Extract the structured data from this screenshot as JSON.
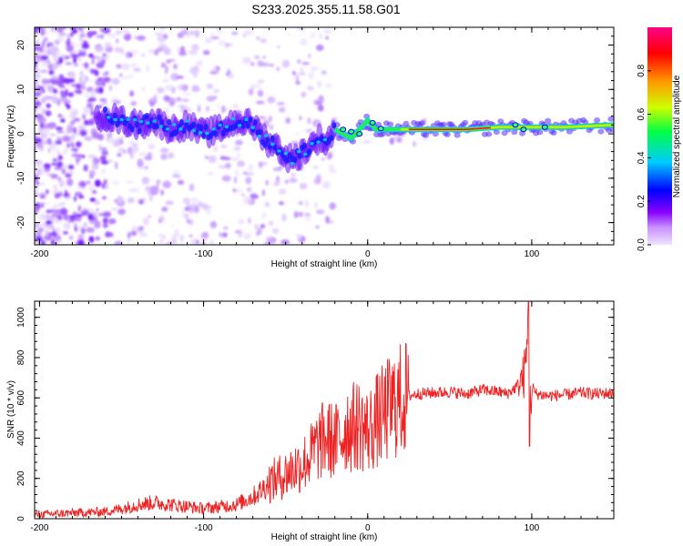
{
  "title": "S233.2025.355.11.58.G01",
  "chart_data": [
    {
      "type": "heatmap",
      "xlabel": "Height of straight line (km)",
      "ylabel": "Frequency (Hz)",
      "xlim": [
        -203,
        150
      ],
      "ylim": [
        -25,
        24
      ],
      "xticks": [
        -200,
        -100,
        0,
        100
      ],
      "xtick_labels": [
        "-200",
        "-100",
        "0",
        "100"
      ],
      "yticks": [
        20,
        10,
        0,
        -10,
        -20
      ],
      "ytick_labels": [
        "20",
        "10",
        "0",
        "-10",
        "-20"
      ],
      "ridge": {
        "x": [
          -160,
          -150,
          -140,
          -130,
          -120,
          -110,
          -100,
          -90,
          -80,
          -70,
          -60,
          -55,
          -50,
          -45,
          -40,
          -35,
          -30,
          -25,
          -20,
          -15,
          -10,
          -5,
          0,
          5,
          10,
          20,
          40,
          60,
          80,
          90,
          100,
          120,
          150
        ],
        "freq": [
          4,
          3,
          2,
          3,
          1,
          2,
          0,
          1,
          3,
          2,
          -2,
          -3,
          -5,
          -6,
          -4,
          -3,
          -1,
          -2,
          1,
          0,
          -1,
          1,
          3,
          1,
          1,
          1,
          1,
          1,
          1.5,
          1.5,
          1.5,
          1.5,
          2
        ]
      },
      "colorbar": {
        "label": "Normalized spectral amplitude",
        "ticks": [
          0.0,
          0.2,
          0.4,
          0.6,
          0.8
        ],
        "tick_labels": [
          "0.0",
          "0.2",
          "0.4",
          "0.6",
          "0.8"
        ],
        "range": [
          0,
          1
        ],
        "colors": [
          "#f0e4ff",
          "#8800ff",
          "#0000ff",
          "#00ccff",
          "#00ff44",
          "#ccff00",
          "#ff9900",
          "#ff0000",
          "#ff0088"
        ]
      }
    },
    {
      "type": "line",
      "xlabel": "Height of straight line (km)",
      "ylabel": "SNR (10 * v/v)",
      "xlim": [
        -203,
        150
      ],
      "ylim": [
        0,
        1080
      ],
      "xticks": [
        -200,
        -100,
        0,
        100
      ],
      "xtick_labels": [
        "-200",
        "-100",
        "0",
        "100"
      ],
      "yticks": [
        0,
        200,
        400,
        600,
        800,
        1000
      ],
      "ytick_labels": [
        "0",
        "200",
        "400",
        "600",
        "800",
        "1000"
      ],
      "color": "#ee2222",
      "series": [
        {
          "name": "SNR",
          "x": [
            -203,
            -190,
            -175,
            -160,
            -150,
            -140,
            -130,
            -120,
            -110,
            -100,
            -90,
            -80,
            -75,
            -70,
            -65,
            -60,
            -55,
            -50,
            -45,
            -40,
            -35,
            -30,
            -25,
            -20,
            -15,
            -12,
            -10,
            -5,
            0,
            5,
            10,
            15,
            20,
            25,
            30,
            40,
            50,
            60,
            70,
            80,
            85,
            90,
            95,
            97,
            98,
            99,
            100,
            103,
            110,
            120,
            130,
            140,
            150
          ],
          "y": [
            20,
            25,
            30,
            35,
            50,
            70,
            80,
            70,
            60,
            50,
            60,
            70,
            90,
            110,
            140,
            180,
            200,
            220,
            250,
            270,
            310,
            370,
            400,
            380,
            420,
            470,
            450,
            470,
            430,
            480,
            520,
            560,
            590,
            610,
            620,
            625,
            630,
            620,
            640,
            630,
            620,
            650,
            700,
            820,
            1060,
            560,
            640,
            620,
            610,
            615,
            625,
            620,
            625
          ]
        }
      ]
    }
  ]
}
